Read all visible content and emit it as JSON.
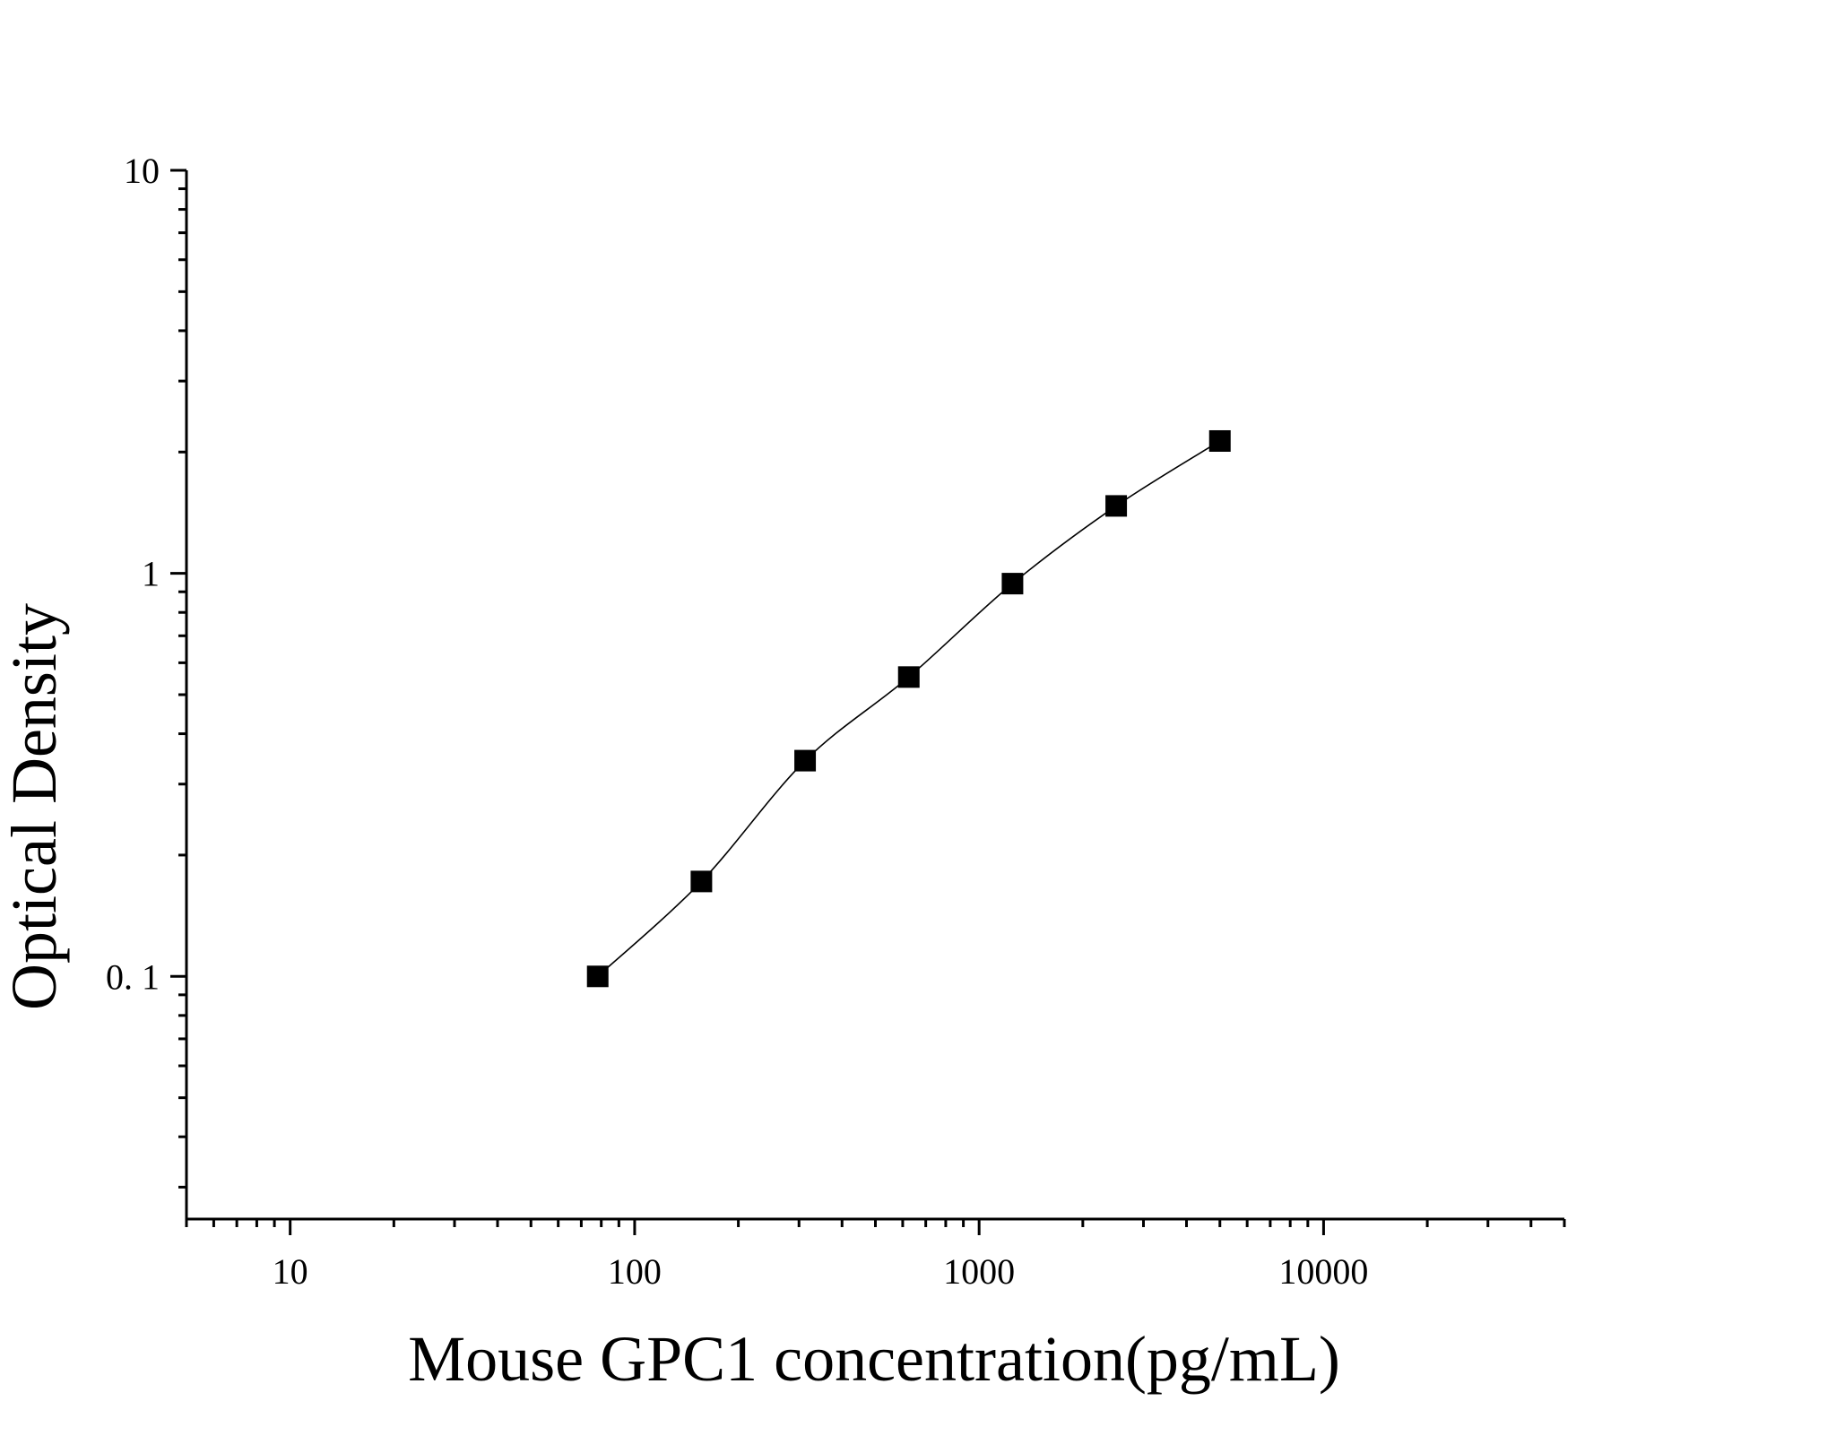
{
  "chart_data": {
    "type": "scatter",
    "title": "",
    "xlabel": "Mouse GPC1 concentration(pg/mL)",
    "ylabel": "Optical Density",
    "x_scale": "log",
    "y_scale": "log",
    "xlim": [
      5,
      50000
    ],
    "ylim": [
      0.025,
      10
    ],
    "x_ticks": [
      {
        "value": 10,
        "label": "10"
      },
      {
        "value": 100,
        "label": "100"
      },
      {
        "value": 1000,
        "label": "1000"
      },
      {
        "value": 10000,
        "label": "10000"
      }
    ],
    "y_ticks": [
      {
        "value": 0.1,
        "label": "0. 1"
      },
      {
        "value": 1,
        "label": "1"
      },
      {
        "value": 10,
        "label": "10"
      }
    ],
    "grid": false,
    "legend": "none",
    "series": [
      {
        "x": [
          78.125,
          156.25,
          312.5,
          625,
          1250,
          2500,
          5000
        ],
        "y": [
          0.1,
          0.172,
          0.343,
          0.553,
          0.943,
          1.47,
          2.13
        ],
        "marker": "square",
        "fit_line": true,
        "color": "#000000"
      }
    ]
  }
}
